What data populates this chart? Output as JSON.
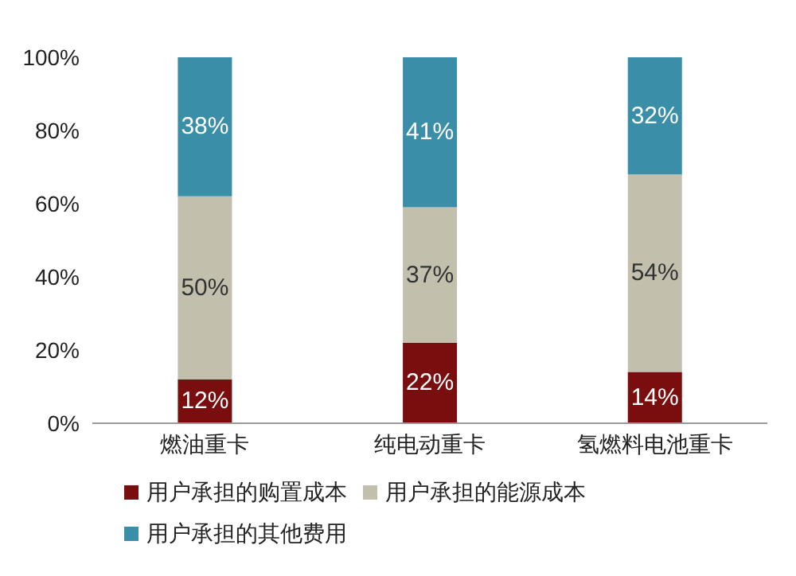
{
  "chart_data": {
    "type": "bar",
    "stacked": true,
    "categories": [
      "燃油重卡",
      "纯电动重卡",
      "氢燃料电池重卡"
    ],
    "series": [
      {
        "name": "用户承担的购置成本",
        "color": "#7a0d0d",
        "values": [
          12,
          22,
          14
        ],
        "value_labels": [
          "12%",
          "22%",
          "14%"
        ]
      },
      {
        "name": "用户承担的能源成本",
        "color": "#c2bfad",
        "values": [
          50,
          37,
          54
        ],
        "value_labels": [
          "50%",
          "37%",
          "54%"
        ]
      },
      {
        "name": "用户承担的其他费用",
        "color": "#3b8ea8",
        "values": [
          38,
          41,
          32
        ],
        "value_labels": [
          "38%",
          "41%",
          "32%"
        ]
      }
    ],
    "ylim": [
      0,
      100
    ],
    "yticks": [
      {
        "value": 0,
        "label": "0%"
      },
      {
        "value": 20,
        "label": "20%"
      },
      {
        "value": 40,
        "label": "40%"
      },
      {
        "value": 60,
        "label": "60%"
      },
      {
        "value": 80,
        "label": "80%"
      },
      {
        "value": 100,
        "label": "100%"
      }
    ],
    "grid": false,
    "legend": "bottom"
  }
}
